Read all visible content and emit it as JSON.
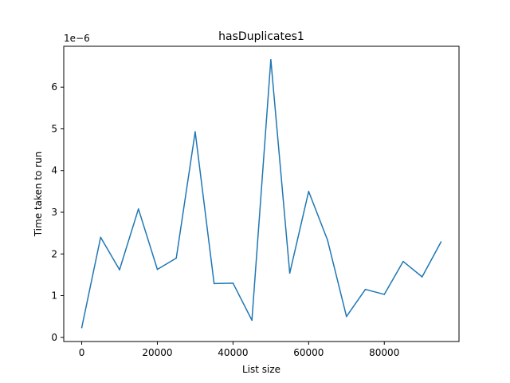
{
  "chart_data": {
    "type": "line",
    "title": "hasDuplicates1",
    "xlabel": "List size",
    "ylabel": "Time taken to run",
    "y_offset_label": "1e−6",
    "xlim": [
      -4750,
      99750
    ],
    "ylim": [
      -1e-07,
      6.98e-06
    ],
    "x_ticks": [
      0,
      20000,
      40000,
      60000,
      80000
    ],
    "x_tick_labels": [
      "0",
      "20000",
      "40000",
      "60000",
      "80000"
    ],
    "y_ticks": [
      0,
      1e-06,
      2e-06,
      3e-06,
      4e-06,
      5e-06,
      6e-06
    ],
    "y_tick_labels": [
      "0",
      "1",
      "2",
      "3",
      "4",
      "5",
      "6"
    ],
    "grid": false,
    "series": [
      {
        "color": "#1f77b4",
        "x": [
          0,
          5000,
          10000,
          15000,
          20000,
          25000,
          30000,
          35000,
          40000,
          45000,
          50000,
          55000,
          60000,
          65000,
          70000,
          75000,
          80000,
          85000,
          90000,
          95000
        ],
        "y": [
          2.3e-07,
          2.4e-06,
          1.62e-06,
          3.08e-06,
          1.63e-06,
          1.9e-06,
          4.93e-06,
          1.29e-06,
          1.3e-06,
          4.1e-07,
          6.66e-06,
          1.54e-06,
          3.5e-06,
          2.33e-06,
          5e-07,
          1.15e-06,
          1.03e-06,
          1.82e-06,
          1.45e-06,
          2.29e-06
        ]
      }
    ]
  }
}
